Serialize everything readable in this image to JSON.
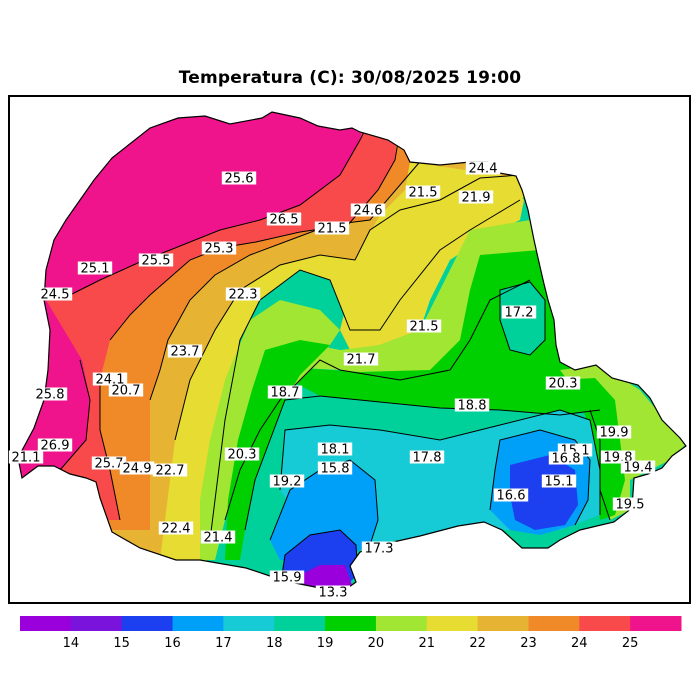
{
  "title": "Temperatura (C): 30/08/2025 19:00",
  "colorbar": {
    "bins": [
      "#9A00DC",
      "#7A14DC",
      "#1C3FF0",
      "#00A0F8",
      "#16CBD5",
      "#00D09A",
      "#00D000",
      "#A0E632",
      "#E6DC32",
      "#E6B432",
      "#F08A28",
      "#F84A4A",
      "#F0148C"
    ],
    "ticks": [
      "14",
      "15",
      "16",
      "17",
      "18",
      "19",
      "20",
      "21",
      "22",
      "23",
      "24",
      "25"
    ]
  },
  "isotherm_labels": [
    "25.6",
    "26.5",
    "24.6",
    "24.4",
    "21.5",
    "21.9",
    "21.5",
    "25.5",
    "25.3",
    "25.1",
    "24.5",
    "22.3",
    "17.2",
    "21.5",
    "23.7",
    "21.7",
    "24.1",
    "20.7",
    "20.3",
    "25.8",
    "18.7",
    "18.8",
    "26.9",
    "21.1",
    "19.9",
    "18.1",
    "17.8",
    "15.1",
    "19.8",
    "25.7",
    "24.9",
    "22.7",
    "20.3",
    "15.8",
    "19.4",
    "16.8",
    "15.1",
    "19.2",
    "16.6",
    "19.5",
    "22.4",
    "21.4",
    "17.3",
    "15.9",
    "13.3"
  ]
}
